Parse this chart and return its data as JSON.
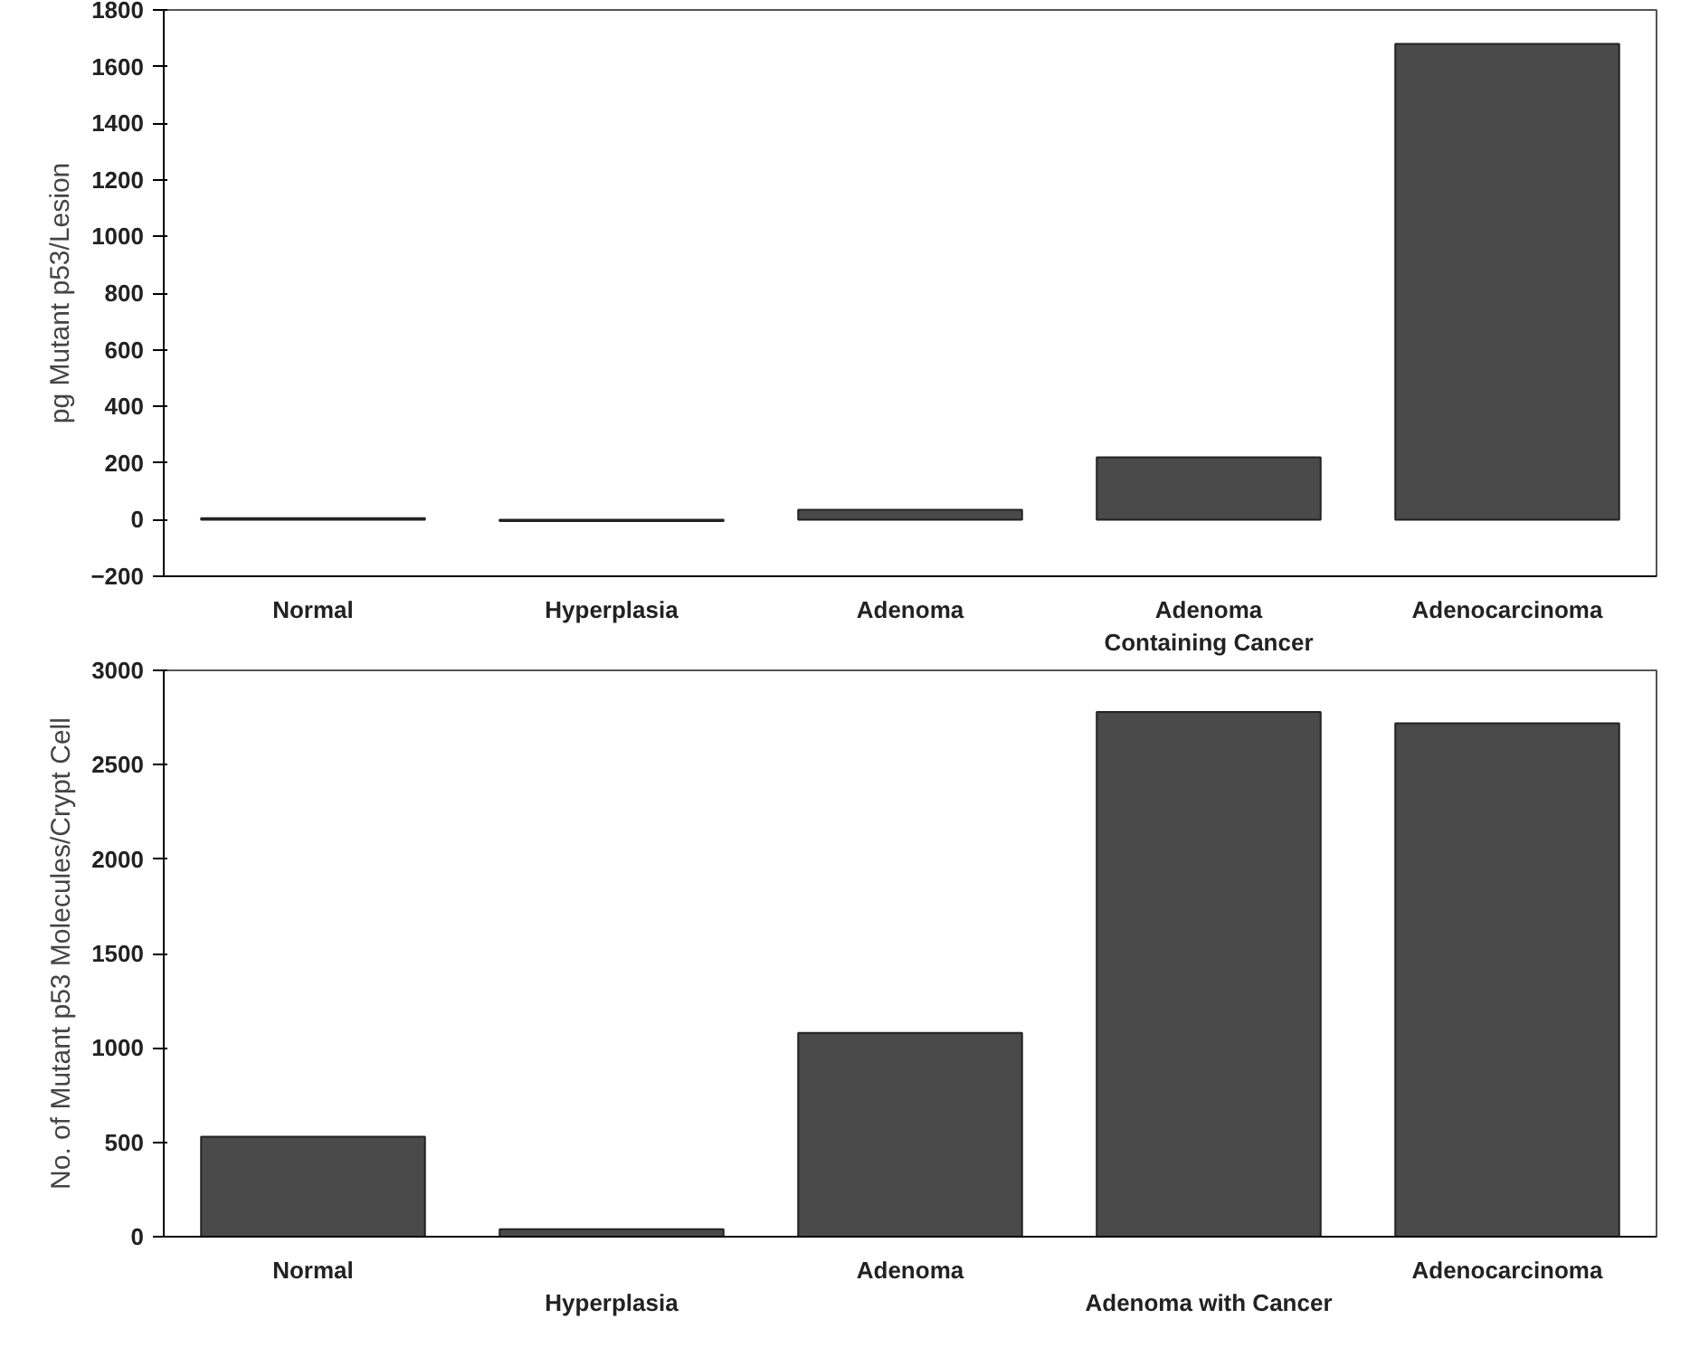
{
  "chart_data": [
    {
      "type": "bar",
      "ylabel": "pg Mutant p53/Lesion",
      "categories": [
        "Normal",
        "Hyperplasia",
        "Adenoma",
        "Adenoma\nContaining Cancer",
        "Adenocarcinoma"
      ],
      "values": [
        5,
        -5,
        35,
        220,
        1680
      ],
      "color": "#4a4a4a",
      "ylim": [
        -200,
        1800
      ],
      "yticks": [
        -200,
        0,
        200,
        400,
        600,
        800,
        1000,
        1200,
        1400,
        1600,
        1800
      ],
      "grid": false
    },
    {
      "type": "bar",
      "ylabel": "No. of Mutant p53 Molecules/Crypt Cell",
      "categories": [
        "Normal",
        "Hyperplasia",
        "Adenoma",
        "Adenoma with Cancer",
        "Adenocarcinoma"
      ],
      "values": [
        530,
        40,
        1080,
        2780,
        2720
      ],
      "color": "#4a4a4a",
      "ylim": [
        0,
        3000
      ],
      "yticks": [
        0,
        500,
        1000,
        1500,
        2000,
        2500,
        3000
      ],
      "grid": false
    }
  ]
}
